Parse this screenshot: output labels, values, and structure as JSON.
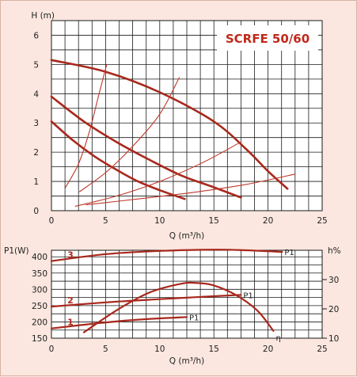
{
  "colors": {
    "background": "#fbe7df",
    "grid": "#1a1a1a",
    "curve": "#c0392b",
    "curve_dark": "#a8281c",
    "title": "#c0281a"
  },
  "chart_data": [
    {
      "type": "line",
      "title": "SCRFE 50/60",
      "xlabel": "Q (m³/h)",
      "ylabel": "H (m)",
      "xlim": [
        0,
        25
      ],
      "ylim": [
        0,
        6.5
      ],
      "x_ticks": [
        "0",
        "5",
        "10",
        "15",
        "20",
        "25"
      ],
      "y_ticks": [
        "0",
        "1",
        "2",
        "3",
        "4",
        "5",
        "6"
      ],
      "grid": true,
      "series": [
        {
          "style": "thick",
          "points": [
            [
              0,
              5.15
            ],
            [
              5,
              4.75
            ],
            [
              10,
              4.05
            ],
            [
              15,
              3.05
            ],
            [
              18,
              2.1
            ],
            [
              20,
              1.35
            ],
            [
              21.8,
              0.75
            ]
          ]
        },
        {
          "style": "thick",
          "points": [
            [
              0,
              3.9
            ],
            [
              3,
              3.05
            ],
            [
              6,
              2.35
            ],
            [
              9,
              1.75
            ],
            [
              12,
              1.2
            ],
            [
              15,
              0.8
            ],
            [
              17.5,
              0.45
            ]
          ]
        },
        {
          "style": "thick",
          "points": [
            [
              0,
              3.05
            ],
            [
              2,
              2.4
            ],
            [
              4,
              1.85
            ],
            [
              6,
              1.4
            ],
            [
              8,
              1.0
            ],
            [
              10,
              0.7
            ],
            [
              12.3,
              0.4
            ]
          ]
        },
        {
          "style": "thin",
          "points": [
            [
              1.3,
              0.8
            ],
            [
              2.5,
              1.6
            ],
            [
              3.5,
              2.7
            ],
            [
              4.4,
              4.0
            ],
            [
              5.1,
              5.0
            ]
          ]
        },
        {
          "style": "thin",
          "points": [
            [
              2.6,
              0.65
            ],
            [
              5,
              1.3
            ],
            [
              7.5,
              2.2
            ],
            [
              10,
              3.3
            ],
            [
              11.8,
              4.55
            ]
          ]
        },
        {
          "style": "thin",
          "points": [
            [
              2.2,
              0.15
            ],
            [
              6,
              0.5
            ],
            [
              10,
              1.0
            ],
            [
              14,
              1.65
            ],
            [
              17.5,
              2.35
            ]
          ]
        },
        {
          "style": "thin",
          "points": [
            [
              3.2,
              0.2
            ],
            [
              8,
              0.4
            ],
            [
              13,
              0.62
            ],
            [
              18,
              0.9
            ],
            [
              22.5,
              1.25
            ]
          ]
        }
      ]
    },
    {
      "type": "line",
      "xlabel": "Q (m³/h)",
      "ylabel": "P1(W)",
      "y2label": "h%",
      "xlim": [
        0,
        25
      ],
      "ylim": [
        150,
        420
      ],
      "y2lim": [
        10,
        40
      ],
      "x_ticks": [
        "0",
        "5",
        "10",
        "15",
        "20",
        "25"
      ],
      "y_ticks": [
        "150",
        "200",
        "250",
        "300",
        "350",
        "400"
      ],
      "y2_ticks": [
        "10",
        "20",
        "30"
      ],
      "grid": true,
      "series": [
        {
          "name": "P1",
          "number": "3",
          "axis": "left",
          "points": [
            [
              0,
              387
            ],
            [
              5,
              408
            ],
            [
              10,
              418
            ],
            [
              15,
              422
            ],
            [
              18,
              420
            ],
            [
              21.3,
              415
            ]
          ]
        },
        {
          "name": "P1",
          "number": "2",
          "axis": "left",
          "points": [
            [
              0,
              247
            ],
            [
              5,
              260
            ],
            [
              10,
              270
            ],
            [
              15,
              279
            ],
            [
              17.5,
              283
            ]
          ]
        },
        {
          "name": "P1",
          "number": "1",
          "axis": "left",
          "points": [
            [
              0,
              180
            ],
            [
              4,
              195
            ],
            [
              8,
              207
            ],
            [
              12.5,
              215
            ]
          ]
        },
        {
          "name": "η",
          "axis": "right",
          "points": [
            [
              3,
              12
            ],
            [
              6,
              19.5
            ],
            [
              9,
              25.5
            ],
            [
              12,
              28.6
            ],
            [
              13.5,
              28.8
            ],
            [
              15,
              28.0
            ],
            [
              17,
              24.8
            ],
            [
              19,
              19.5
            ],
            [
              20.5,
              12.5
            ]
          ]
        }
      ]
    }
  ]
}
